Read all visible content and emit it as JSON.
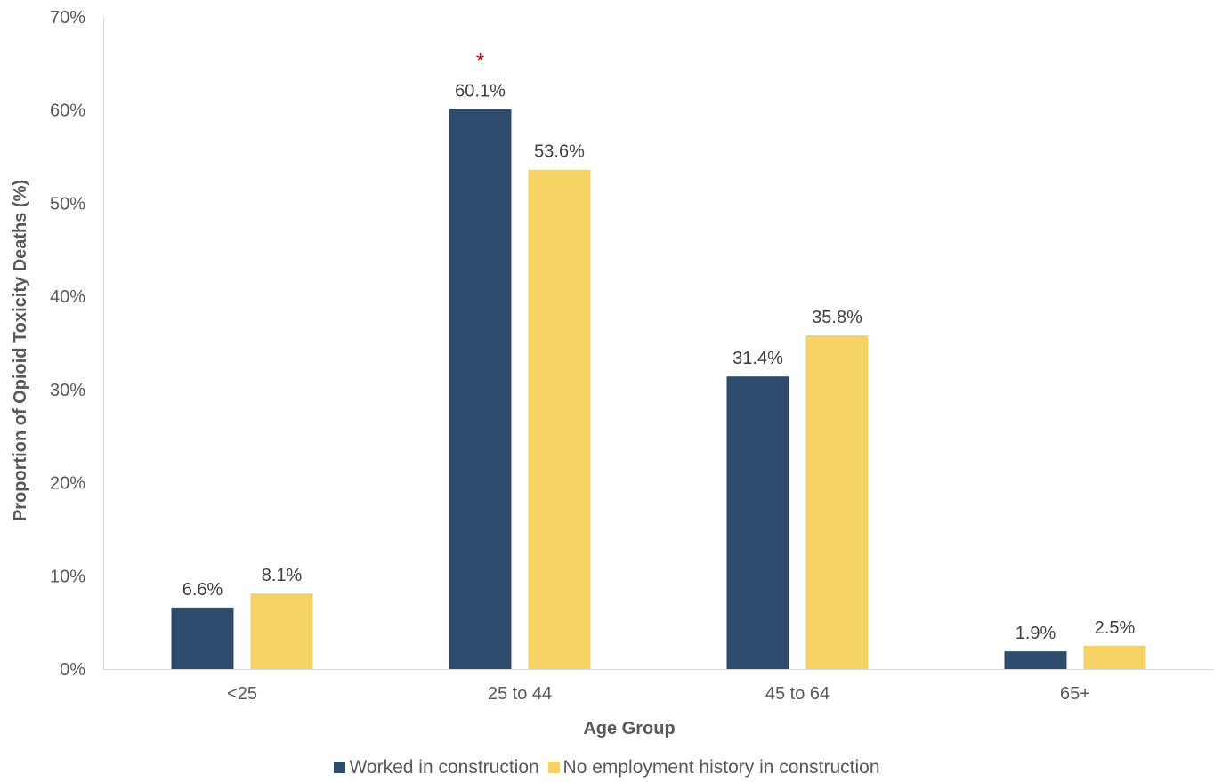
{
  "chart_data": {
    "type": "bar",
    "categories": [
      "<25",
      "25 to 44",
      "45 to 64",
      "65+"
    ],
    "series": [
      {
        "name": "Worked in construction",
        "color": "#2e4d6e",
        "values": [
          6.6,
          60.1,
          31.4,
          1.9
        ],
        "labels": [
          "6.6%",
          "60.1%",
          "31.4%",
          "1.9%"
        ]
      },
      {
        "name": "No employment history in construction",
        "color": "#f4d264",
        "values": [
          8.1,
          53.6,
          35.8,
          2.5
        ],
        "labels": [
          "8.1%",
          "53.6%",
          "35.8%",
          "2.5%"
        ]
      }
    ],
    "ylim": [
      0,
      70
    ],
    "yticks": [
      "0%",
      "10%",
      "20%",
      "30%",
      "40%",
      "50%",
      "60%",
      "70%"
    ],
    "xlabel": "Age Group",
    "ylabel": "Proportion of Opioid Toxicity Deaths (%)",
    "annotation": {
      "text": "*",
      "category": "25 to 44",
      "color": "#e00000"
    },
    "grid": false,
    "legend_position": "bottom"
  }
}
